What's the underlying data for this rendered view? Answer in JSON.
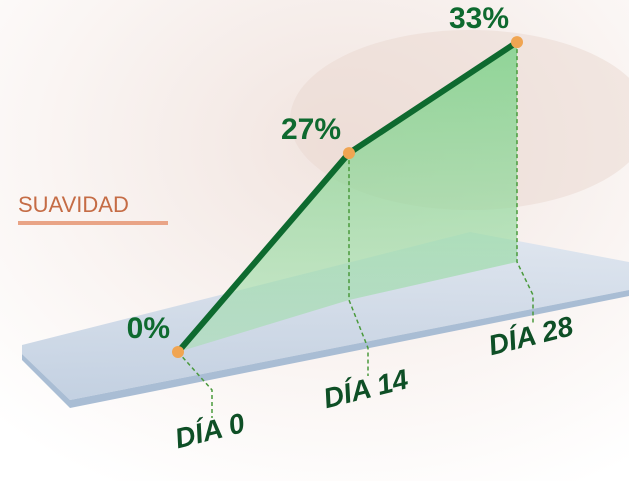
{
  "chart_data": {
    "type": "line",
    "title": "SUAVIDAD",
    "categories": [
      "DÍA 0",
      "DÍA 14",
      "DÍA 28"
    ],
    "values": [
      0,
      27,
      33
    ],
    "value_labels": [
      "0%",
      "27%",
      "33%"
    ],
    "color": "#0e6a2f",
    "marker_color": "#f0a552"
  }
}
